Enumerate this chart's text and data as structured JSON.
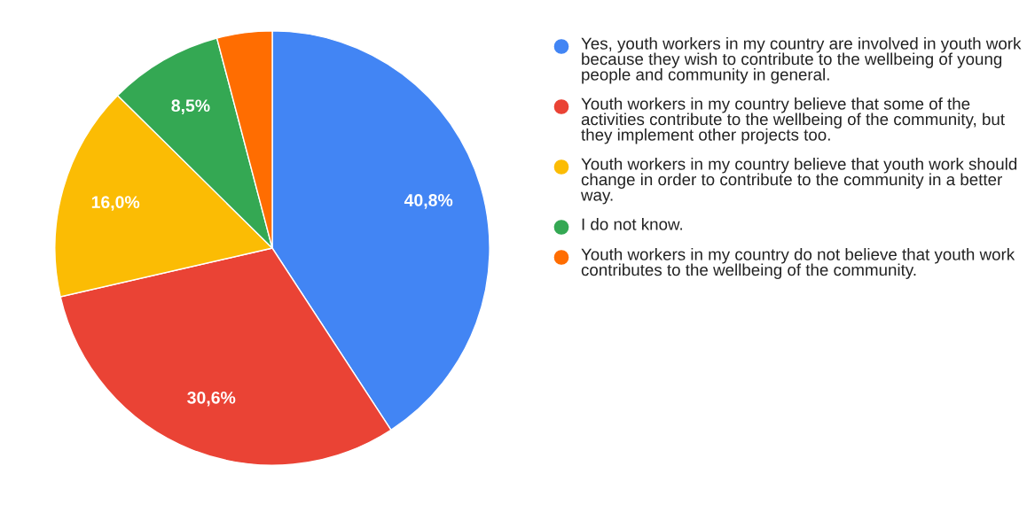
{
  "chart_data": {
    "type": "pie",
    "categories": [
      "Yes, youth workers in my country are involved in youth work because they wish to contribute to the wellbeing of young people and community in general.",
      "Youth workers in my country believe that some of the activities contribute to the wellbeing of the community, but they implement other projects too.",
      "Youth workers in my country believe that youth work should change in order to contribute to the community in a better way.",
      "I do not know.",
      "Youth workers in my country do not believe that youth work contributes to the wellbeing of the community."
    ],
    "values": [
      40.8,
      30.6,
      16.0,
      8.5,
      4.1
    ],
    "value_labels": [
      "40,8%",
      "30,6%",
      "16,0%",
      "8,5%",
      null
    ],
    "colors": [
      "#4285f4",
      "#ea4335",
      "#fbbc04",
      "#34a853",
      "#ff6d01"
    ],
    "legend": "right"
  }
}
